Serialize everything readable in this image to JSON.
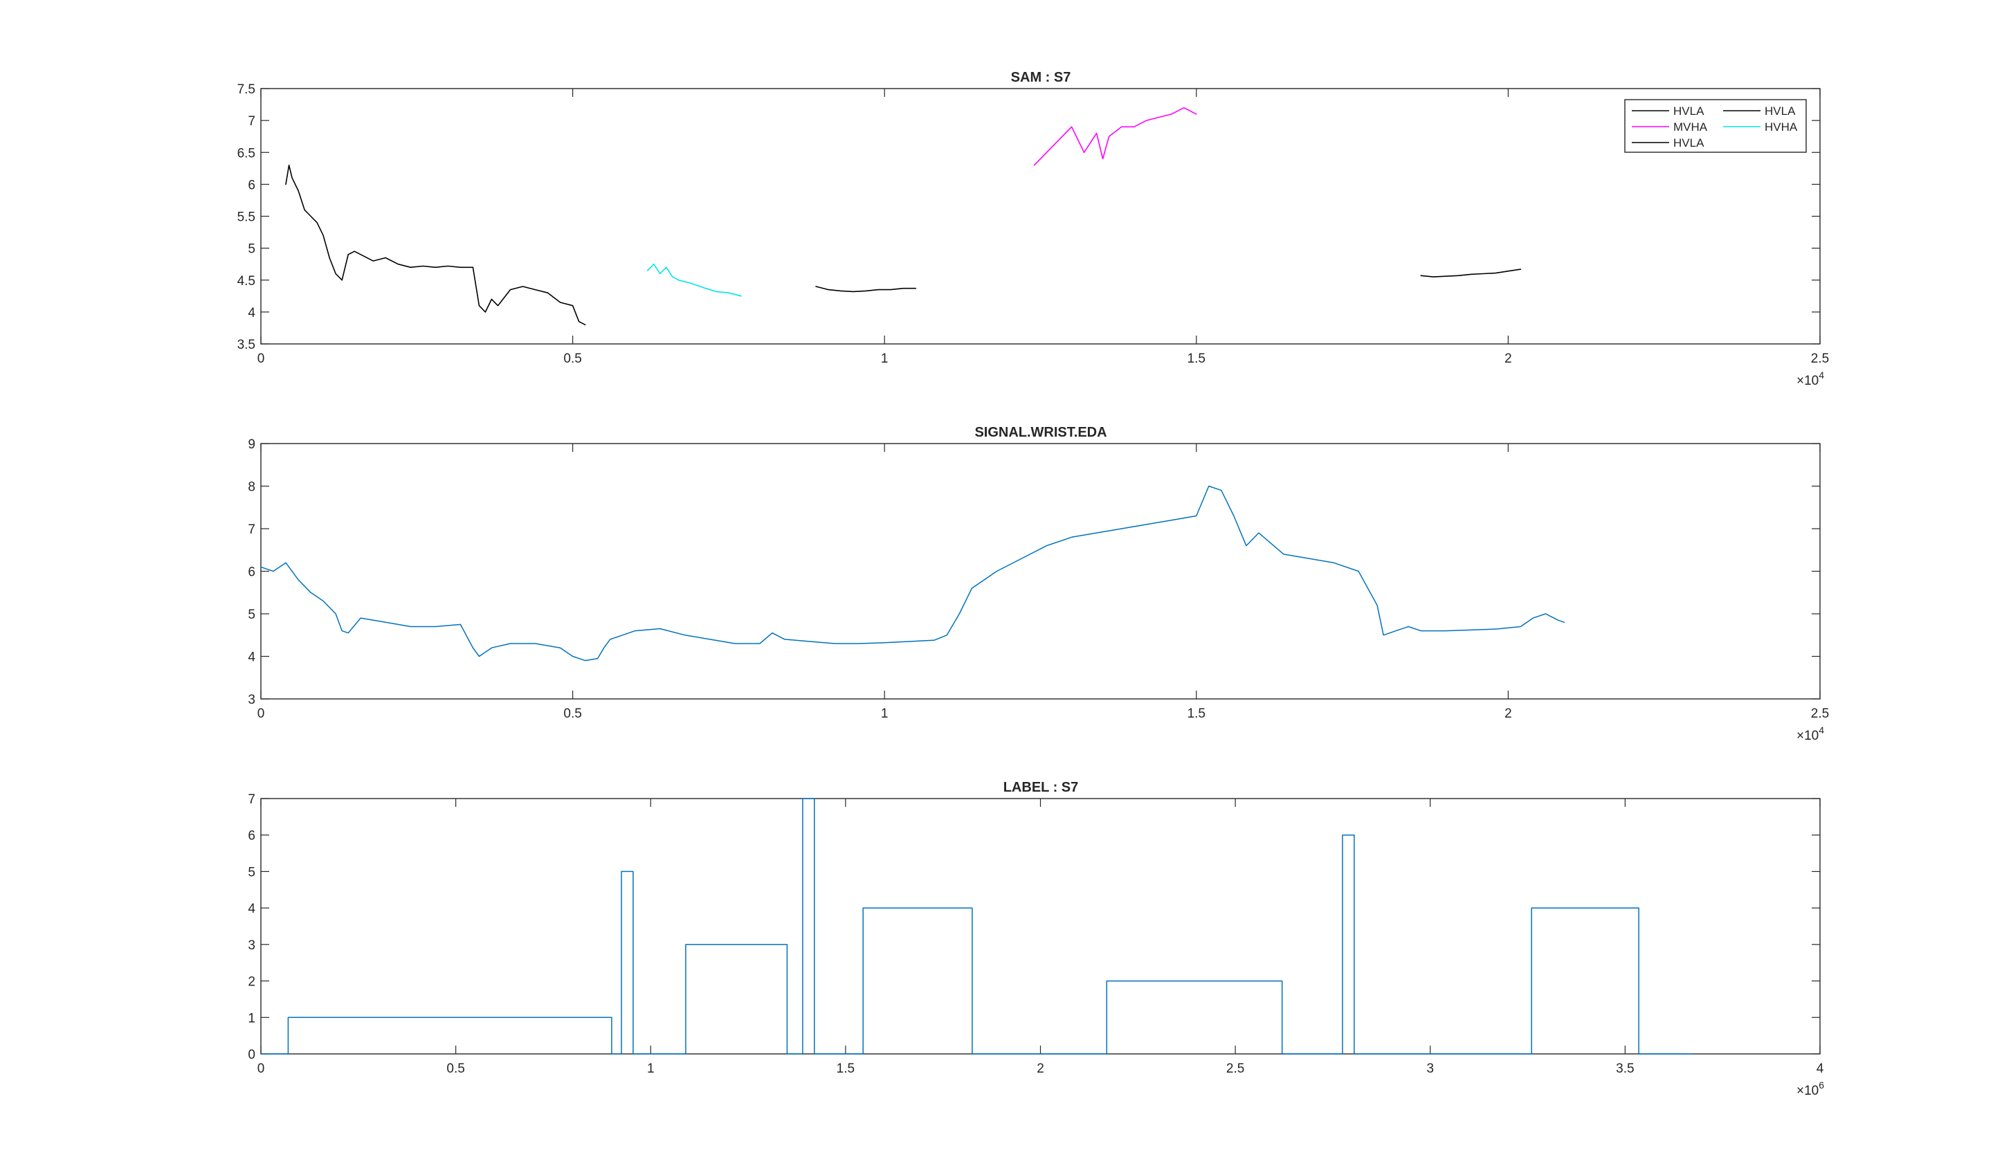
{
  "chart_data": [
    {
      "type": "line",
      "title": "SAM : S7",
      "xlim": [
        0,
        25000
      ],
      "ylim": [
        3.5,
        7.5
      ],
      "x_ticks": [
        0,
        5000,
        10000,
        15000,
        20000,
        25000
      ],
      "x_tick_labels": [
        "0",
        "0.5",
        "1",
        "1.5",
        "2",
        "2.5"
      ],
      "y_ticks": [
        3.5,
        4,
        4.5,
        5,
        5.5,
        6,
        6.5,
        7,
        7.5
      ],
      "y_tick_labels": [
        "3.5",
        "4",
        "4.5",
        "5",
        "5.5",
        "6",
        "6.5",
        "7",
        "7.5"
      ],
      "x_exponent_label": "×10",
      "x_exponent_power": "4",
      "legend_position": "top-right",
      "series": [
        {
          "name": "HVLA",
          "color": "#000000",
          "x": [
            400,
            450,
            500,
            600,
            700,
            800,
            900,
            1000,
            1100,
            1200,
            1300,
            1400,
            1500,
            1600,
            1800,
            2000,
            2200,
            2400,
            2600,
            2800,
            3000,
            3200,
            3400,
            3500,
            3600,
            3700,
            3800,
            4000,
            4200,
            4400,
            4600,
            4800,
            5000,
            5100,
            5200
          ],
          "y": [
            6.0,
            6.3,
            6.1,
            5.9,
            5.6,
            5.5,
            5.4,
            5.2,
            4.85,
            4.6,
            4.5,
            4.9,
            4.95,
            4.9,
            4.8,
            4.85,
            4.75,
            4.7,
            4.72,
            4.7,
            4.72,
            4.7,
            4.7,
            4.1,
            4.0,
            4.2,
            4.1,
            4.35,
            4.4,
            4.35,
            4.3,
            4.15,
            4.1,
            3.85,
            3.8
          ]
        },
        {
          "name": "MVHA",
          "color": "#ff00ff",
          "x": [
            12400,
            12600,
            12800,
            13000,
            13200,
            13400,
            13500,
            13600,
            13800,
            14000,
            14200,
            14400,
            14600,
            14800,
            15000
          ],
          "y": [
            6.3,
            6.5,
            6.7,
            6.9,
            6.5,
            6.8,
            6.4,
            6.75,
            6.9,
            6.9,
            7.0,
            7.05,
            7.1,
            7.2,
            7.1
          ]
        },
        {
          "name": "HVLA",
          "color": "#000000",
          "x": [
            8900,
            9100,
            9300,
            9500,
            9700,
            9900,
            10100,
            10300,
            10500
          ],
          "y": [
            4.4,
            4.35,
            4.33,
            4.32,
            4.33,
            4.35,
            4.35,
            4.37,
            4.37
          ]
        },
        {
          "name": "HVLA",
          "color": "#000000",
          "x": [
            18600,
            18800,
            19000,
            19200,
            19400,
            19600,
            19800,
            20000,
            20200
          ],
          "y": [
            4.57,
            4.55,
            4.56,
            4.57,
            4.59,
            4.6,
            4.61,
            4.64,
            4.67
          ]
        },
        {
          "name": "HVHA",
          "color": "#00e5e5",
          "x": [
            6200,
            6300,
            6400,
            6500,
            6600,
            6700,
            6900,
            7100,
            7300,
            7500,
            7700
          ],
          "y": [
            4.65,
            4.75,
            4.6,
            4.7,
            4.55,
            4.5,
            4.45,
            4.38,
            4.32,
            4.3,
            4.25
          ]
        }
      ]
    },
    {
      "type": "line",
      "title": "SIGNAL.WRIST.EDA",
      "xlim": [
        0,
        25000
      ],
      "ylim": [
        3,
        9
      ],
      "x_ticks": [
        0,
        5000,
        10000,
        15000,
        20000,
        25000
      ],
      "x_tick_labels": [
        "0",
        "0.5",
        "1",
        "1.5",
        "2",
        "2.5"
      ],
      "y_ticks": [
        3,
        4,
        5,
        6,
        7,
        8,
        9
      ],
      "y_tick_labels": [
        "3",
        "4",
        "5",
        "6",
        "7",
        "8",
        "9"
      ],
      "x_exponent_label": "×10",
      "x_exponent_power": "4",
      "series": [
        {
          "color": "#0072bd",
          "x": [
            0,
            200,
            400,
            600,
            800,
            1000,
            1200,
            1300,
            1400,
            1600,
            2000,
            2400,
            2800,
            3200,
            3400,
            3500,
            3700,
            4000,
            4400,
            4800,
            5000,
            5200,
            5400,
            5500,
            5600,
            5800,
            6000,
            6400,
            6800,
            7200,
            7600,
            8000,
            8200,
            8400,
            8800,
            9200,
            9600,
            10000,
            10400,
            10800,
            11000,
            11200,
            11400,
            11800,
            12200,
            12600,
            13000,
            13400,
            13800,
            14200,
            14600,
            15000,
            15200,
            15400,
            15600,
            15800,
            16000,
            16400,
            16800,
            17200,
            17600,
            17900,
            18000,
            18200,
            18400,
            18600,
            19000,
            19400,
            19800,
            20200,
            20400,
            20600,
            20800,
            20900
          ],
          "y": [
            6.1,
            6.0,
            6.2,
            5.8,
            5.5,
            5.3,
            5.0,
            4.6,
            4.55,
            4.9,
            4.8,
            4.7,
            4.7,
            4.75,
            4.2,
            4.0,
            4.2,
            4.3,
            4.3,
            4.2,
            4.0,
            3.9,
            3.95,
            4.2,
            4.4,
            4.5,
            4.6,
            4.65,
            4.5,
            4.4,
            4.3,
            4.3,
            4.55,
            4.4,
            4.35,
            4.3,
            4.3,
            4.32,
            4.35,
            4.38,
            4.5,
            5.0,
            5.6,
            6.0,
            6.3,
            6.6,
            6.8,
            6.9,
            7.0,
            7.1,
            7.2,
            7.3,
            8.0,
            7.9,
            7.3,
            6.6,
            6.9,
            6.4,
            6.3,
            6.2,
            6.0,
            5.2,
            4.5,
            4.6,
            4.7,
            4.6,
            4.6,
            4.62,
            4.64,
            4.7,
            4.9,
            5.0,
            4.85,
            4.8
          ]
        }
      ]
    },
    {
      "type": "line",
      "title": "LABEL : S7",
      "xlim": [
        0,
        4000000
      ],
      "ylim": [
        0,
        7
      ],
      "x_ticks": [
        0,
        500000,
        1000000,
        1500000,
        2000000,
        2500000,
        3000000,
        3500000,
        4000000
      ],
      "x_tick_labels": [
        "0",
        "0.5",
        "1",
        "1.5",
        "2",
        "2.5",
        "3",
        "3.5",
        "4"
      ],
      "y_ticks": [
        0,
        1,
        2,
        3,
        4,
        5,
        6,
        7
      ],
      "y_tick_labels": [
        "0",
        "1",
        "2",
        "3",
        "4",
        "5",
        "6",
        "7"
      ],
      "x_exponent_label": "×10",
      "x_exponent_power": "6",
      "series": [
        {
          "color": "#0072bd",
          "x": [
            0,
            70000,
            70000,
            900000,
            900000,
            925000,
            925000,
            955000,
            955000,
            1090000,
            1090000,
            1350000,
            1350000,
            1390000,
            1390000,
            1420000,
            1420000,
            1545000,
            1545000,
            1825000,
            1825000,
            2170000,
            2170000,
            2620000,
            2620000,
            2775000,
            2775000,
            2805000,
            2805000,
            3260000,
            3260000,
            3535000,
            3535000,
            3670000
          ],
          "y": [
            0,
            0,
            1,
            1,
            0,
            0,
            5,
            5,
            0,
            0,
            3,
            3,
            0,
            0,
            7,
            7,
            0,
            0,
            4,
            4,
            0,
            0,
            2,
            2,
            0,
            0,
            6,
            6,
            0,
            0,
            4,
            4,
            0,
            0
          ]
        }
      ]
    }
  ]
}
